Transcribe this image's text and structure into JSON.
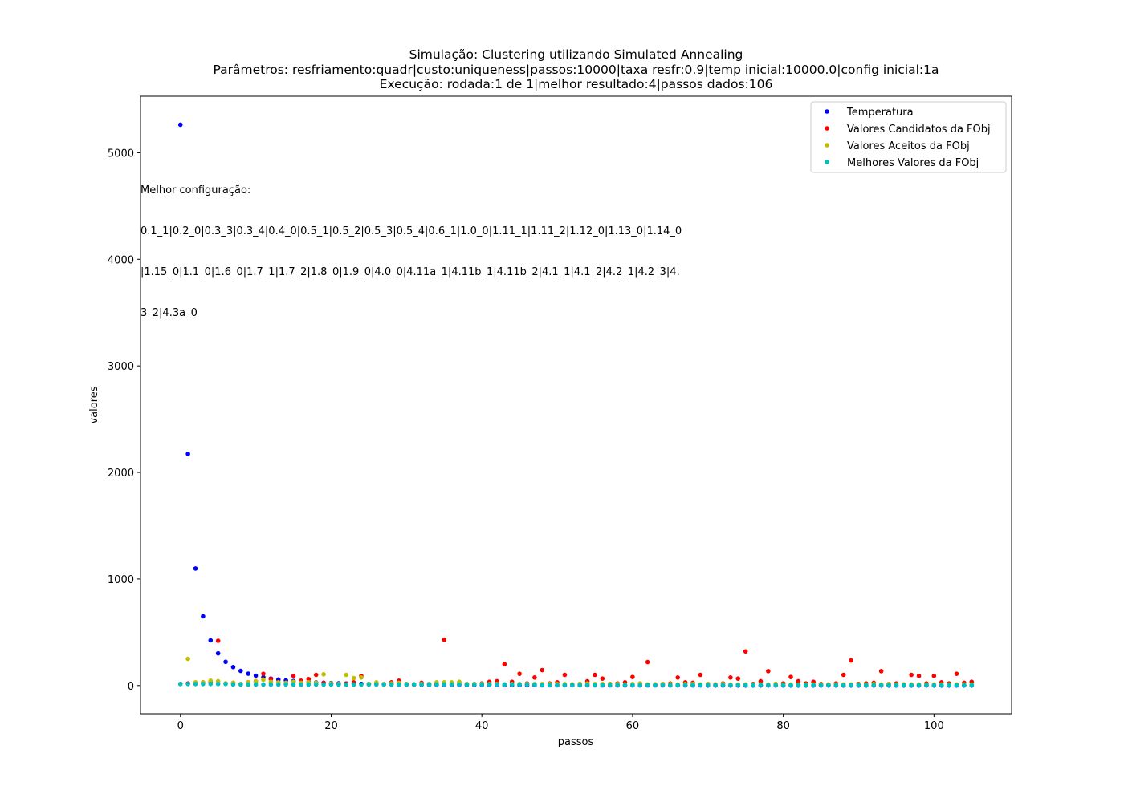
{
  "chart_data": {
    "type": "scatter",
    "title_lines": [
      "Simulação: Clustering utilizando Simulated Annealing",
      "Parâmetros: resfriamento:quadr|custo:uniqueness|passos:10000|taxa resfr:0.9|temp inicial:10000.0|config inicial:1a",
      "Execução: rodada:1 de 1|melhor resultado:4|passos dados:106"
    ],
    "xlabel": "passos",
    "ylabel": "valores",
    "xlim": [
      -5.3,
      110.3
    ],
    "ylim": [
      -265,
      5530
    ],
    "xticks": [
      0,
      20,
      40,
      60,
      80,
      100
    ],
    "yticks": [
      0,
      1000,
      2000,
      3000,
      4000,
      5000
    ],
    "grid": false,
    "legend_position": "top-right",
    "annotation_lines": [
      "Melhor configuração:",
      "0.1_1|0.2_0|0.3_3|0.3_4|0.4_0|0.5_1|0.5_2|0.5_3|0.5_4|0.6_1|1.0_0|1.11_1|1.11_2|1.12_0|1.13_0|1.14_0",
      "|1.15_0|1.1_0|1.6_0|1.7_1|1.7_2|1.8_0|1.9_0|4.0_0|4.11a_1|4.11b_1|4.11b_2|4.1_1|4.1_2|4.2_1|4.2_3|4.",
      "3_2|4.3a_0"
    ],
    "series": [
      {
        "name": "Temperatura",
        "color": "#0000ff",
        "values": [
          5263,
          2174,
          1098,
          650,
          424,
          302,
          222,
          173,
          137,
          111,
          92,
          77,
          65,
          56,
          48,
          42,
          37,
          33,
          29,
          26,
          23,
          21,
          19,
          17,
          16,
          14,
          13,
          12,
          11,
          10,
          10,
          9,
          8,
          8,
          7,
          7,
          6,
          6,
          6,
          5,
          5,
          5,
          5,
          4,
          4,
          4,
          4,
          4,
          3,
          3,
          3,
          3,
          3,
          3,
          3,
          3,
          2,
          2,
          2,
          2,
          2,
          2,
          2,
          2,
          2,
          2,
          2,
          2,
          2,
          2,
          1,
          1,
          1,
          1,
          1,
          1,
          1,
          1,
          1,
          1,
          1,
          1,
          1,
          1,
          1,
          1,
          1,
          1,
          1,
          1,
          1,
          1,
          1,
          1,
          1,
          1,
          1,
          1,
          1,
          1,
          1,
          1,
          1,
          1,
          1,
          1
        ]
      },
      {
        "name": "Valores Candidatos da FObj",
        "color": "#ff0000",
        "values": [
          15,
          20,
          25,
          30,
          35,
          420,
          20,
          25,
          15,
          30,
          40,
          110,
          60,
          30,
          25,
          90,
          45,
          60,
          100,
          25,
          20,
          15,
          20,
          30,
          90,
          15,
          20,
          15,
          30,
          45,
          15,
          10,
          25,
          15,
          20,
          430,
          15,
          25,
          15,
          15,
          20,
          35,
          40,
          200,
          35,
          110,
          20,
          75,
          145,
          20,
          30,
          100,
          10,
          15,
          40,
          100,
          65,
          15,
          20,
          30,
          80,
          20,
          220,
          10,
          15,
          20,
          75,
          30,
          25,
          100,
          15,
          10,
          20,
          75,
          65,
          320,
          15,
          40,
          135,
          15,
          20,
          80,
          40,
          20,
          35,
          15,
          10,
          20,
          100,
          235,
          15,
          20,
          25,
          135,
          15,
          20,
          10,
          100,
          90,
          20,
          90,
          30,
          20,
          110,
          25,
          35
        ]
      },
      {
        "name": "Valores Aceitos da FObj",
        "color": "#bfbf00",
        "values": [
          15,
          250,
          30,
          30,
          45,
          40,
          20,
          25,
          15,
          30,
          40,
          55,
          35,
          30,
          25,
          35,
          25,
          30,
          25,
          105,
          20,
          15,
          100,
          70,
          75,
          15,
          30,
          15,
          20,
          25,
          15,
          10,
          15,
          15,
          30,
          30,
          30,
          35,
          15,
          15,
          15,
          15,
          15,
          10,
          15,
          15,
          15,
          15,
          15,
          15,
          15,
          15,
          10,
          15,
          20,
          15,
          15,
          15,
          15,
          10,
          15,
          20,
          10,
          10,
          15,
          15,
          10,
          15,
          15,
          10,
          15,
          10,
          15,
          10,
          10,
          10,
          10,
          10,
          10,
          15,
          10,
          10,
          10,
          10,
          10,
          10,
          10,
          10,
          10,
          10,
          10,
          10,
          15,
          10,
          15,
          10,
          10,
          10,
          10,
          10,
          10,
          10,
          10,
          10,
          10,
          10
        ]
      },
      {
        "name": "Melhores Valores da FObj",
        "color": "#00bfbf",
        "values": [
          15,
          15,
          15,
          15,
          15,
          15,
          15,
          10,
          10,
          10,
          10,
          10,
          10,
          10,
          10,
          10,
          10,
          10,
          10,
          10,
          10,
          10,
          10,
          10,
          10,
          10,
          10,
          10,
          10,
          10,
          10,
          10,
          10,
          10,
          10,
          10,
          10,
          10,
          10,
          10,
          10,
          10,
          10,
          10,
          10,
          10,
          10,
          10,
          5,
          5,
          5,
          5,
          5,
          5,
          5,
          5,
          5,
          5,
          5,
          5,
          5,
          5,
          5,
          5,
          5,
          5,
          5,
          5,
          5,
          5,
          5,
          5,
          5,
          5,
          5,
          5,
          5,
          5,
          5,
          4,
          4,
          4,
          4,
          4,
          4,
          4,
          4,
          4,
          4,
          4,
          4,
          4,
          4,
          4,
          4,
          4,
          4,
          4,
          4,
          4,
          4,
          4,
          4,
          4,
          4,
          4
        ]
      }
    ]
  }
}
